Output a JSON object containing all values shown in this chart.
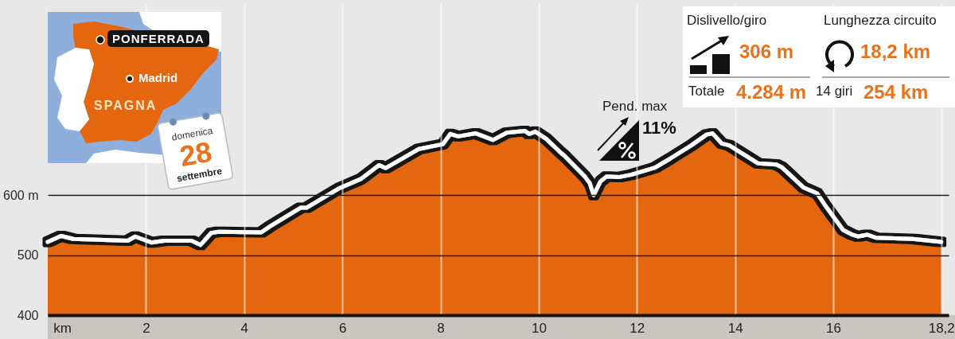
{
  "chart_data": {
    "type": "area",
    "x": [
      0,
      0.27,
      0.52,
      1.63,
      1.78,
      2.12,
      2.37,
      2.93,
      3.11,
      3.33,
      3.48,
      4.35,
      4.53,
      5.15,
      5.27,
      5.95,
      6.38,
      6.75,
      6.88,
      7.56,
      8.05,
      8.2,
      8.36,
      8.72,
      9.07,
      9.35,
      9.72,
      9.81,
      9.93,
      10.15,
      10.46,
      10.52,
      10.95,
      11.04,
      11.12,
      11.26,
      11.38,
      11.63,
      11.88,
      12.37,
      12.68,
      13.11,
      13.42,
      13.54,
      13.73,
      13.88,
      14.47,
      14.84,
      14.96,
      15.39,
      15.67,
      15.86,
      16.2,
      16.39,
      16.5,
      16.69,
      16.87,
      17.62,
      18.2
    ],
    "series": [
      {
        "color": "#e4670f",
        "values": [
          522,
          532,
          527,
          524,
          531,
          521,
          524,
          524,
          517,
          537,
          539,
          538,
          548,
          579,
          579,
          612,
          627,
          650,
          645,
          677,
          685,
          702,
          698,
          703,
          692,
          704,
          707,
          702,
          706,
          694,
          670,
          666,
          630,
          620,
          600,
          623,
          631,
          630,
          634,
          646,
          661,
          683,
          701,
          703,
          686,
          683,
          653,
          651,
          646,
          613,
          603,
          580,
          542,
          534,
          531,
          534,
          529,
          527,
          522
        ]
      }
    ],
    "xlabel": "km",
    "xlim": [
      0,
      18.35
    ],
    "xticks": [
      2,
      4,
      6,
      8,
      10,
      12,
      14,
      16,
      {
        "value": 18.2,
        "label": "18,2"
      }
    ],
    "ylim": [
      400,
      920
    ],
    "yticks": [
      400,
      500,
      {
        "value": 600,
        "label": "600 m"
      }
    ],
    "grid": true,
    "annotations": [
      "PONFERRADA",
      "Madrid",
      "SPAGNA",
      "domenica",
      "28",
      "settembre",
      "Dislivello/giro",
      "306 m",
      "Totale",
      "4.284 m",
      "Lunghezza circuito",
      "18,2 km",
      "14 giri",
      "254 km",
      "Pend. max",
      "11%"
    ]
  }
}
